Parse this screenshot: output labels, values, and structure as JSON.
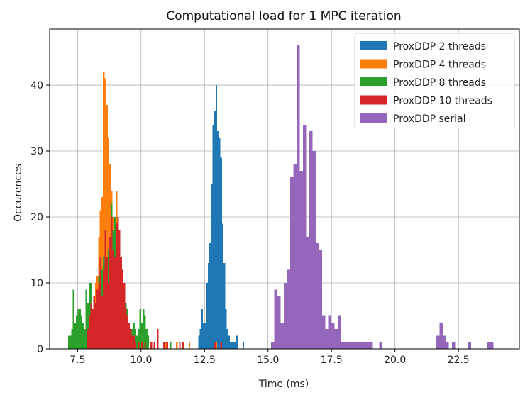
{
  "chart_data": {
    "type": "histogram",
    "title": "Computational load for 1 MPC iteration",
    "xlabel": "Time (ms)",
    "ylabel": "Occurences",
    "xlim": [
      6.4,
      24.9
    ],
    "ylim": [
      0,
      48.5
    ],
    "xticks": [
      7.5,
      10.0,
      12.5,
      15.0,
      17.5,
      20.0,
      22.5
    ],
    "xtick_labels": [
      "7.5",
      "10.0",
      "12.5",
      "15.0",
      "17.5",
      "20.0",
      "22.5"
    ],
    "yticks": [
      0,
      10,
      20,
      30,
      40
    ],
    "ytick_labels": [
      "0",
      "10",
      "20",
      "30",
      "40"
    ],
    "grid": true,
    "legend_position": "top-right",
    "series": [
      {
        "name": "ProxDDP serial",
        "color": "#9467bd",
        "bin_width": 0.125,
        "bins": [
          [
            15.0,
            0
          ],
          [
            15.125,
            1
          ],
          [
            15.25,
            9
          ],
          [
            15.375,
            8
          ],
          [
            15.5,
            4
          ],
          [
            15.625,
            10
          ],
          [
            15.75,
            12
          ],
          [
            15.875,
            26
          ],
          [
            16.0,
            28
          ],
          [
            16.125,
            46
          ],
          [
            16.25,
            27
          ],
          [
            16.375,
            34
          ],
          [
            16.5,
            17
          ],
          [
            16.625,
            33
          ],
          [
            16.75,
            30
          ],
          [
            16.875,
            16
          ],
          [
            17.0,
            15
          ],
          [
            17.125,
            5
          ],
          [
            17.25,
            3
          ],
          [
            17.375,
            5
          ],
          [
            17.5,
            4
          ],
          [
            17.625,
            3
          ],
          [
            17.75,
            5
          ],
          [
            17.875,
            1
          ],
          [
            18.0,
            1
          ],
          [
            18.125,
            1
          ],
          [
            18.25,
            1
          ],
          [
            18.375,
            1
          ],
          [
            18.5,
            1
          ],
          [
            18.625,
            1
          ],
          [
            18.75,
            1
          ],
          [
            18.875,
            1
          ],
          [
            19.0,
            1
          ],
          [
            19.25,
            0
          ],
          [
            19.375,
            1
          ],
          [
            19.5,
            0
          ],
          [
            21.5,
            0
          ],
          [
            21.625,
            2
          ],
          [
            21.75,
            4
          ],
          [
            21.875,
            2
          ],
          [
            22.0,
            1
          ],
          [
            22.25,
            1
          ],
          [
            22.875,
            1
          ],
          [
            23.625,
            1
          ],
          [
            23.75,
            1
          ]
        ]
      },
      {
        "name": "ProxDDP 2 threads",
        "color": "#1f77b4",
        "bin_width": 0.0625,
        "bins": [
          [
            12.25,
            2
          ],
          [
            12.3125,
            3
          ],
          [
            12.375,
            6
          ],
          [
            12.4375,
            4
          ],
          [
            12.5,
            4
          ],
          [
            12.5625,
            10
          ],
          [
            12.625,
            13
          ],
          [
            12.6875,
            16
          ],
          [
            12.75,
            25
          ],
          [
            12.8125,
            34
          ],
          [
            12.875,
            36
          ],
          [
            12.9375,
            40
          ],
          [
            13.0,
            33
          ],
          [
            13.0625,
            32
          ],
          [
            13.125,
            29
          ],
          [
            13.1875,
            19
          ],
          [
            13.25,
            13
          ],
          [
            13.3125,
            6
          ],
          [
            13.375,
            3
          ],
          [
            13.4375,
            2
          ],
          [
            13.5,
            1
          ],
          [
            13.5625,
            1
          ],
          [
            13.625,
            1
          ],
          [
            13.6875,
            1
          ],
          [
            13.75,
            2
          ],
          [
            14.0,
            1
          ]
        ]
      },
      {
        "name": "ProxDDP 4 threads",
        "color": "#ff7f0e",
        "bin_width": 0.0625,
        "bins": [
          [
            8.125,
            8
          ],
          [
            8.1875,
            10
          ],
          [
            8.25,
            11
          ],
          [
            8.3125,
            17
          ],
          [
            8.375,
            21
          ],
          [
            8.4375,
            23
          ],
          [
            8.5,
            42
          ],
          [
            8.5625,
            41
          ],
          [
            8.625,
            37
          ],
          [
            8.6875,
            32
          ],
          [
            8.75,
            28
          ],
          [
            8.8125,
            24
          ],
          [
            8.875,
            20
          ],
          [
            8.9375,
            18
          ],
          [
            9.0,
            24
          ],
          [
            9.0625,
            18
          ],
          [
            9.125,
            14
          ],
          [
            9.1875,
            12
          ],
          [
            9.25,
            10
          ],
          [
            9.3125,
            8
          ],
          [
            9.375,
            6
          ],
          [
            9.4375,
            4
          ],
          [
            9.5,
            3
          ],
          [
            9.5625,
            2
          ],
          [
            9.625,
            2
          ],
          [
            9.6875,
            1
          ],
          [
            9.75,
            2
          ],
          [
            9.875,
            1
          ],
          [
            10.1875,
            1
          ],
          [
            10.25,
            1
          ],
          [
            10.375,
            1
          ],
          [
            10.5,
            1
          ],
          [
            10.9375,
            1
          ],
          [
            11.375,
            1
          ],
          [
            11.875,
            1
          ],
          [
            12.9375,
            1
          ]
        ]
      },
      {
        "name": "ProxDDP 8 threads",
        "color": "#2ca02c",
        "bin_width": 0.0625,
        "bins": [
          [
            7.125,
            2
          ],
          [
            7.1875,
            2
          ],
          [
            7.25,
            3
          ],
          [
            7.3125,
            9
          ],
          [
            7.375,
            4
          ],
          [
            7.4375,
            5
          ],
          [
            7.5,
            6
          ],
          [
            7.5625,
            6
          ],
          [
            7.625,
            5
          ],
          [
            7.6875,
            4
          ],
          [
            7.75,
            3
          ],
          [
            7.8125,
            9
          ],
          [
            7.875,
            7
          ],
          [
            7.9375,
            10
          ],
          [
            8.0,
            10
          ],
          [
            8.0625,
            4
          ],
          [
            8.125,
            5
          ],
          [
            8.1875,
            6
          ],
          [
            8.25,
            8
          ],
          [
            8.3125,
            11
          ],
          [
            8.375,
            13
          ],
          [
            8.4375,
            12
          ],
          [
            8.5,
            14
          ],
          [
            8.5625,
            17
          ],
          [
            8.625,
            14
          ],
          [
            8.6875,
            15
          ],
          [
            8.75,
            17
          ],
          [
            8.8125,
            22
          ],
          [
            8.875,
            18
          ],
          [
            8.9375,
            20
          ],
          [
            9.0,
            16
          ],
          [
            9.0625,
            14
          ],
          [
            9.125,
            13
          ],
          [
            9.1875,
            12
          ],
          [
            9.25,
            10
          ],
          [
            9.3125,
            8
          ],
          [
            9.375,
            7
          ],
          [
            9.4375,
            6
          ],
          [
            9.5,
            4
          ],
          [
            9.5625,
            3
          ],
          [
            9.625,
            3
          ],
          [
            9.6875,
            4
          ],
          [
            9.75,
            3
          ],
          [
            9.8125,
            2
          ],
          [
            9.875,
            3
          ],
          [
            9.9375,
            6
          ],
          [
            10.0,
            4
          ],
          [
            10.0625,
            6
          ],
          [
            10.125,
            5
          ],
          [
            10.1875,
            3
          ],
          [
            10.25,
            2
          ],
          [
            10.375,
            1
          ],
          [
            10.5,
            1
          ],
          [
            10.625,
            1
          ],
          [
            10.875,
            1
          ],
          [
            11.125,
            1
          ]
        ]
      },
      {
        "name": "ProxDDP 10 threads",
        "color": "#d62728",
        "bin_width": 0.0625,
        "bins": [
          [
            7.875,
            3
          ],
          [
            7.9375,
            5
          ],
          [
            8.0,
            7
          ],
          [
            8.0625,
            6
          ],
          [
            8.125,
            8
          ],
          [
            8.1875,
            7
          ],
          [
            8.25,
            9
          ],
          [
            8.3125,
            10
          ],
          [
            8.375,
            14
          ],
          [
            8.4375,
            8
          ],
          [
            8.5,
            12
          ],
          [
            8.5625,
            18
          ],
          [
            8.625,
            14
          ],
          [
            8.6875,
            10
          ],
          [
            8.75,
            17
          ],
          [
            8.8125,
            20
          ],
          [
            8.875,
            15
          ],
          [
            8.9375,
            14
          ],
          [
            9.0,
            19
          ],
          [
            9.0625,
            20
          ],
          [
            9.125,
            18
          ],
          [
            9.1875,
            14
          ],
          [
            9.25,
            12
          ],
          [
            9.3125,
            10
          ],
          [
            9.375,
            6
          ],
          [
            9.4375,
            5
          ],
          [
            9.5,
            4
          ],
          [
            9.5625,
            3
          ],
          [
            9.625,
            2
          ],
          [
            9.6875,
            2
          ],
          [
            9.75,
            1
          ],
          [
            9.875,
            1
          ],
          [
            10.0,
            1
          ],
          [
            10.125,
            1
          ],
          [
            10.375,
            1
          ],
          [
            10.5,
            1
          ],
          [
            10.625,
            3
          ],
          [
            10.875,
            1
          ],
          [
            11.0,
            1
          ],
          [
            11.5,
            1
          ],
          [
            11.625,
            1
          ],
          [
            12.875,
            1
          ],
          [
            13.125,
            1
          ]
        ]
      }
    ],
    "legend_order": [
      "ProxDDP 2 threads",
      "ProxDDP 4 threads",
      "ProxDDP 8 threads",
      "ProxDDP 10 threads",
      "ProxDDP serial"
    ]
  }
}
